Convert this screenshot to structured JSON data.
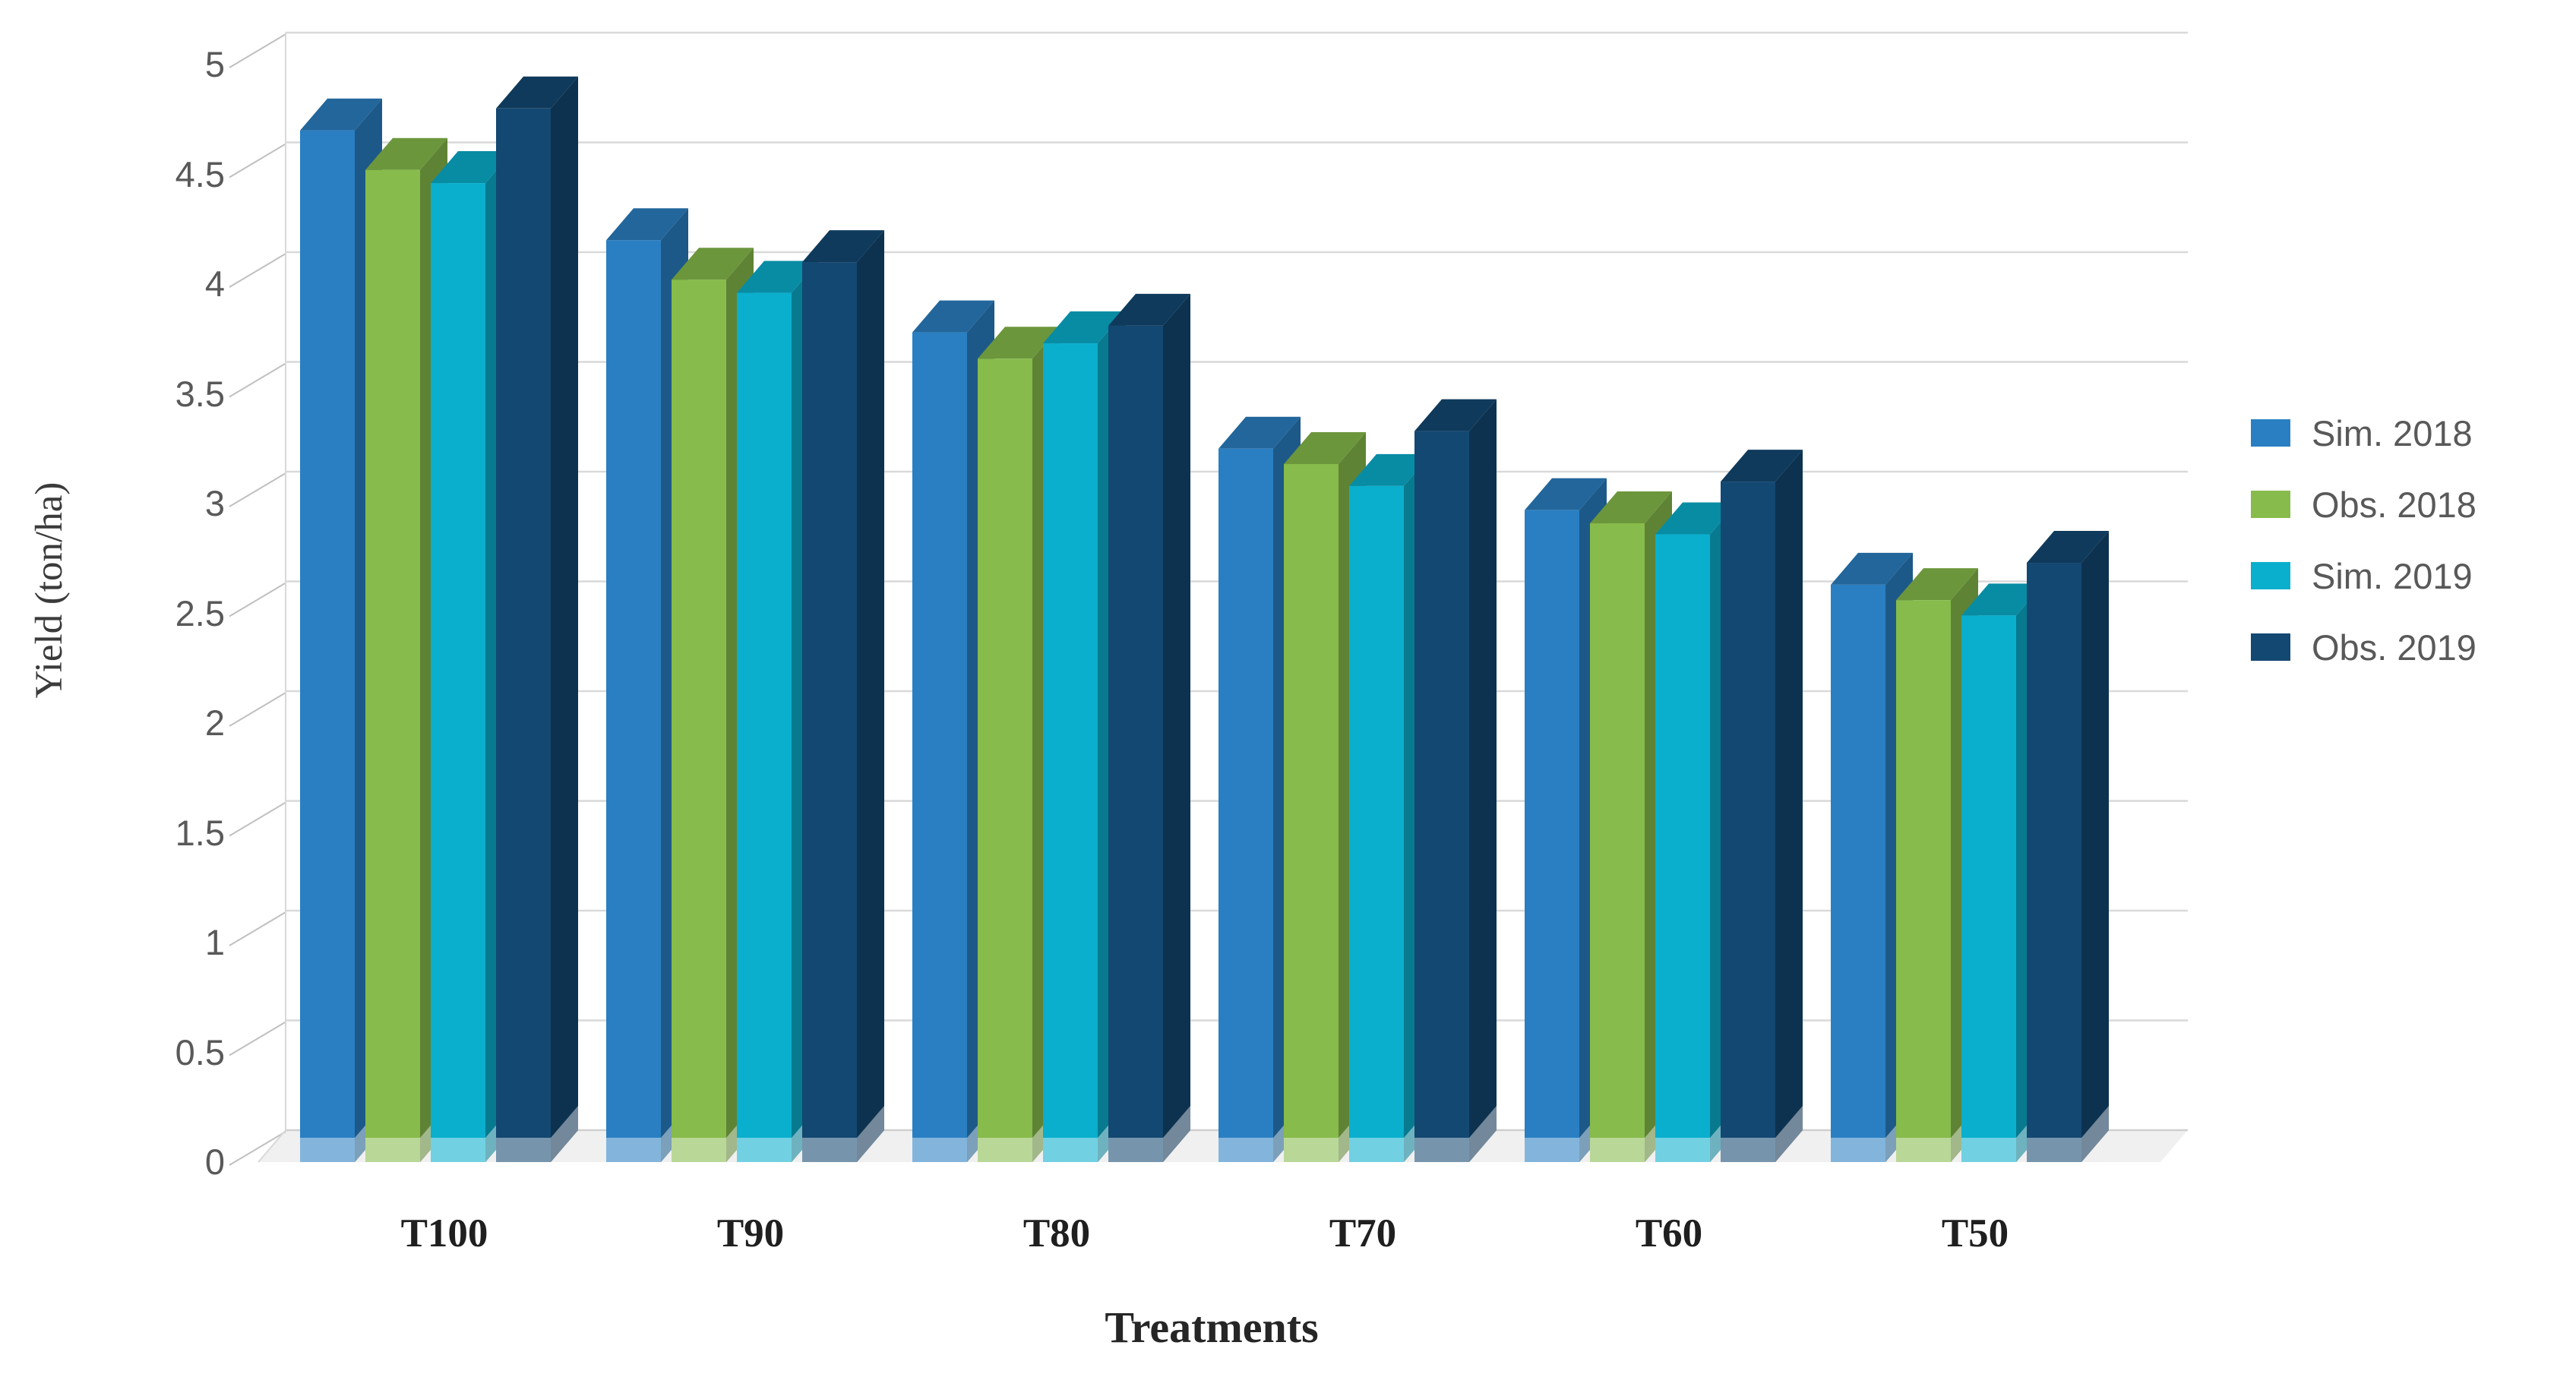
{
  "chart_data": {
    "type": "bar",
    "variant": "3d-clustered-column",
    "title": "",
    "xlabel": "Treatments",
    "ylabel": "Yield (ton/ha)",
    "categories": [
      "T100",
      "T90",
      "T80",
      "T70",
      "T60",
      "T50"
    ],
    "series": [
      {
        "name": "Sim. 2018",
        "color": "#2A7FC2",
        "values": [
          4.7,
          4.2,
          3.78,
          3.25,
          2.97,
          2.63
        ]
      },
      {
        "name": "Obs. 2018",
        "color": "#87BB4B",
        "values": [
          4.52,
          4.02,
          3.66,
          3.18,
          2.91,
          2.56
        ]
      },
      {
        "name": "Sim. 2019",
        "color": "#0AAFCD",
        "values": [
          4.46,
          3.96,
          3.73,
          3.08,
          2.86,
          2.49
        ]
      },
      {
        "name": "Obs. 2019",
        "color": "#134872",
        "values": [
          4.8,
          4.1,
          3.81,
          3.33,
          3.1,
          2.73
        ]
      }
    ],
    "ylim": [
      0,
      5
    ],
    "ytick_step": 0.5,
    "yticks": [
      "0",
      "0.5",
      "1",
      "1.5",
      "2",
      "2.5",
      "3",
      "3.5",
      "4",
      "4.5",
      "5"
    ],
    "grid": true,
    "legend_position": "right",
    "colors": {
      "gridline": "#d9d9d9",
      "baseline": "#cfcfcf",
      "axis_tick": "#c0c0c0",
      "floor": "#ededed",
      "tick_label": "#595959",
      "legend_label": "#595959",
      "category_label": "#1f1f1f",
      "axis_title": "#3b3b3b"
    }
  }
}
